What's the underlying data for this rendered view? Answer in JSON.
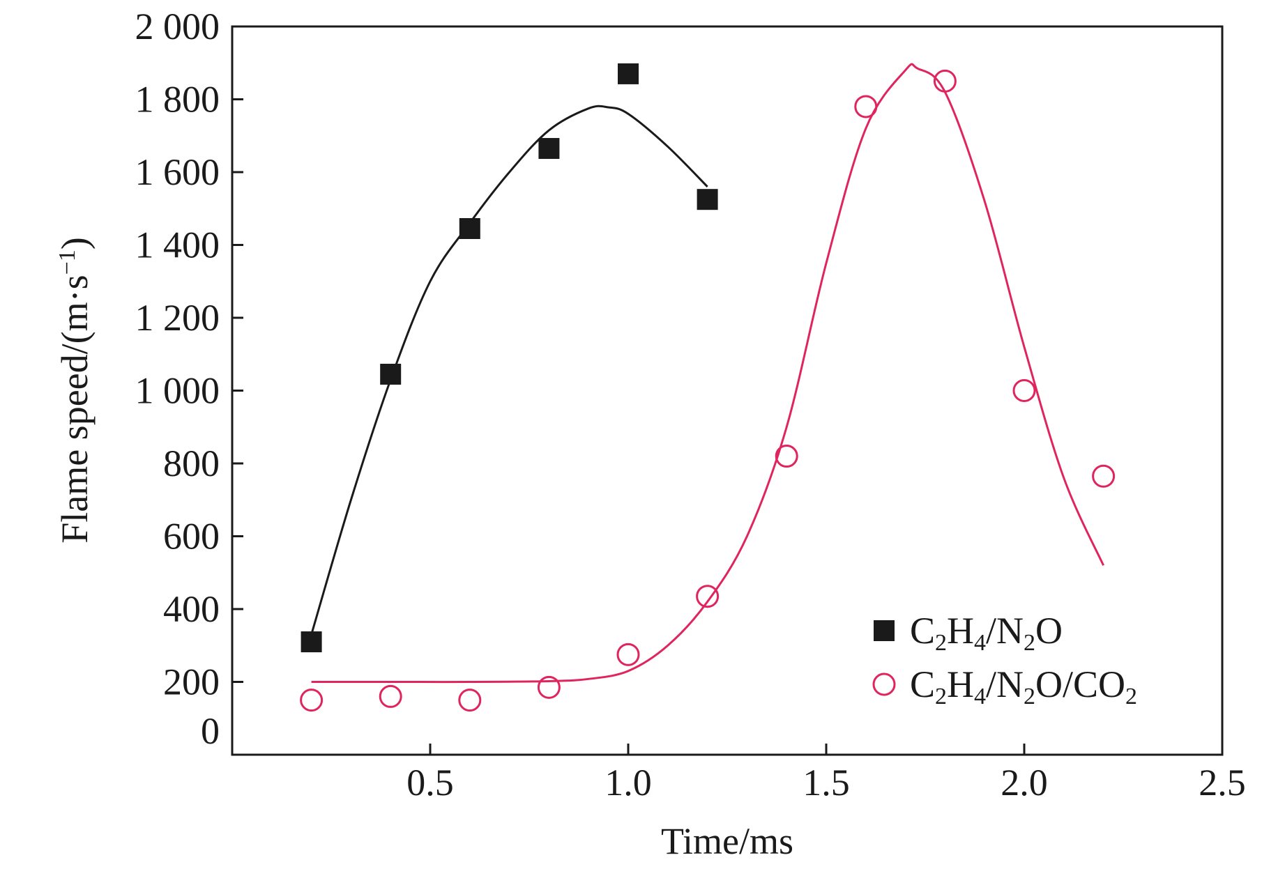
{
  "chart_data": {
    "type": "scatter",
    "xlabel": "Time/ms",
    "ylabel_text": "Flame speed/(m·s",
    "ylabel_sup": "−1",
    "ylabel_close": ")",
    "xlim": [
      0,
      2.5
    ],
    "ylim": [
      0,
      2000
    ],
    "x_ticks": [
      0.5,
      1.0,
      1.5,
      2.0,
      2.5
    ],
    "x_tick_labels": [
      "0.5",
      "1.0",
      "1.5",
      "2.0",
      "2.5"
    ],
    "y_ticks": [
      0,
      200,
      400,
      600,
      800,
      1000,
      1200,
      1400,
      1600,
      1800,
      2000
    ],
    "y_tick_labels": [
      "0",
      "200",
      "400",
      "600",
      "800",
      "1 000",
      "1 200",
      "1 400",
      "1 600",
      "1 800",
      "2 000"
    ],
    "grid": false,
    "legend_position": "bottom-right",
    "series": [
      {
        "name": "C2H4/N2O",
        "legend_parts": [
          [
            "C",
            ""
          ],
          [
            "2",
            "sub"
          ],
          [
            "H",
            ""
          ],
          [
            "4",
            "sub"
          ],
          [
            "/N",
            ""
          ],
          [
            "2",
            "sub"
          ],
          [
            "O",
            ""
          ]
        ],
        "marker": "filled-square",
        "color": "#1a1a1a",
        "x": [
          0.2,
          0.4,
          0.6,
          0.8,
          1.0,
          1.2
        ],
        "y": [
          310,
          1045,
          1445,
          1665,
          1870,
          1525
        ],
        "fit_x": [
          0.2,
          0.3,
          0.4,
          0.5,
          0.6,
          0.7,
          0.8,
          0.9,
          0.95,
          1.0,
          1.1,
          1.2
        ],
        "fit_y": [
          330,
          700,
          1030,
          1300,
          1460,
          1600,
          1715,
          1775,
          1778,
          1760,
          1670,
          1560
        ]
      },
      {
        "name": "C2H4/N2O/CO2",
        "legend_parts": [
          [
            "C",
            ""
          ],
          [
            "2",
            "sub"
          ],
          [
            "H",
            ""
          ],
          [
            "4",
            "sub"
          ],
          [
            "/N",
            ""
          ],
          [
            "2",
            "sub"
          ],
          [
            "O/CO",
            ""
          ],
          [
            "2",
            "sub"
          ]
        ],
        "marker": "open-circle",
        "color": "#e0245e",
        "x": [
          0.2,
          0.4,
          0.6,
          0.8,
          1.0,
          1.2,
          1.4,
          1.6,
          1.8,
          2.0,
          2.2
        ],
        "y": [
          150,
          160,
          150,
          185,
          275,
          435,
          820,
          1780,
          1850,
          1000,
          765
        ],
        "fit_x": [
          0.2,
          0.4,
          0.6,
          0.8,
          0.9,
          1.0,
          1.1,
          1.2,
          1.3,
          1.4,
          1.5,
          1.6,
          1.7,
          1.73,
          1.8,
          1.9,
          2.0,
          2.1,
          2.2
        ],
        "fit_y": [
          200,
          200,
          200,
          202,
          208,
          230,
          300,
          420,
          600,
          900,
          1350,
          1720,
          1880,
          1885,
          1820,
          1520,
          1120,
          760,
          520
        ]
      }
    ]
  }
}
